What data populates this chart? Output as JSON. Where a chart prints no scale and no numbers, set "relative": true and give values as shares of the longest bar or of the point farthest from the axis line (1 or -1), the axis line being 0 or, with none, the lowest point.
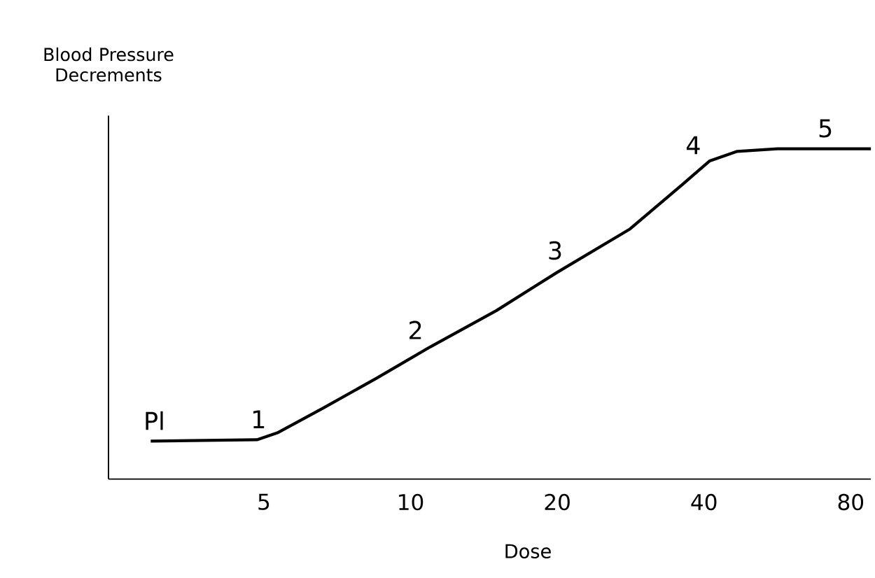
{
  "chart_data": {
    "type": "line",
    "xlabel": "Dose",
    "ylabel": "Blood Pressure Decrements",
    "log": "x",
    "relative": true,
    "color": "#000000",
    "line_style": "solid",
    "marker": "none",
    "xlim": [
      2.4,
      88
    ],
    "xticks": [
      5,
      10,
      20,
      40,
      80
    ],
    "x": [
      2.93,
      4.84,
      5.33,
      6.6,
      8.51,
      10.97,
      15.0,
      20.0,
      28.2,
      36.2,
      41.1,
      46.8,
      56.6,
      88
    ],
    "values": [
      0.115,
      0.119,
      0.14,
      0.214,
      0.305,
      0.4,
      0.51,
      0.626,
      0.757,
      0.893,
      0.963,
      0.992,
      1,
      1
    ],
    "annotations": [
      {
        "text": "Pl",
        "x": 3.1,
        "y": 0.115
      },
      {
        "text": "1",
        "x": 5,
        "y": 0.12
      },
      {
        "text": "2",
        "x": 10.5,
        "y": 0.39
      },
      {
        "text": "3",
        "x": 20.3,
        "y": 0.63
      },
      {
        "text": "4",
        "x": 39,
        "y": 0.95
      },
      {
        "text": "5",
        "x": 72.8,
        "y": 1
      }
    ]
  }
}
